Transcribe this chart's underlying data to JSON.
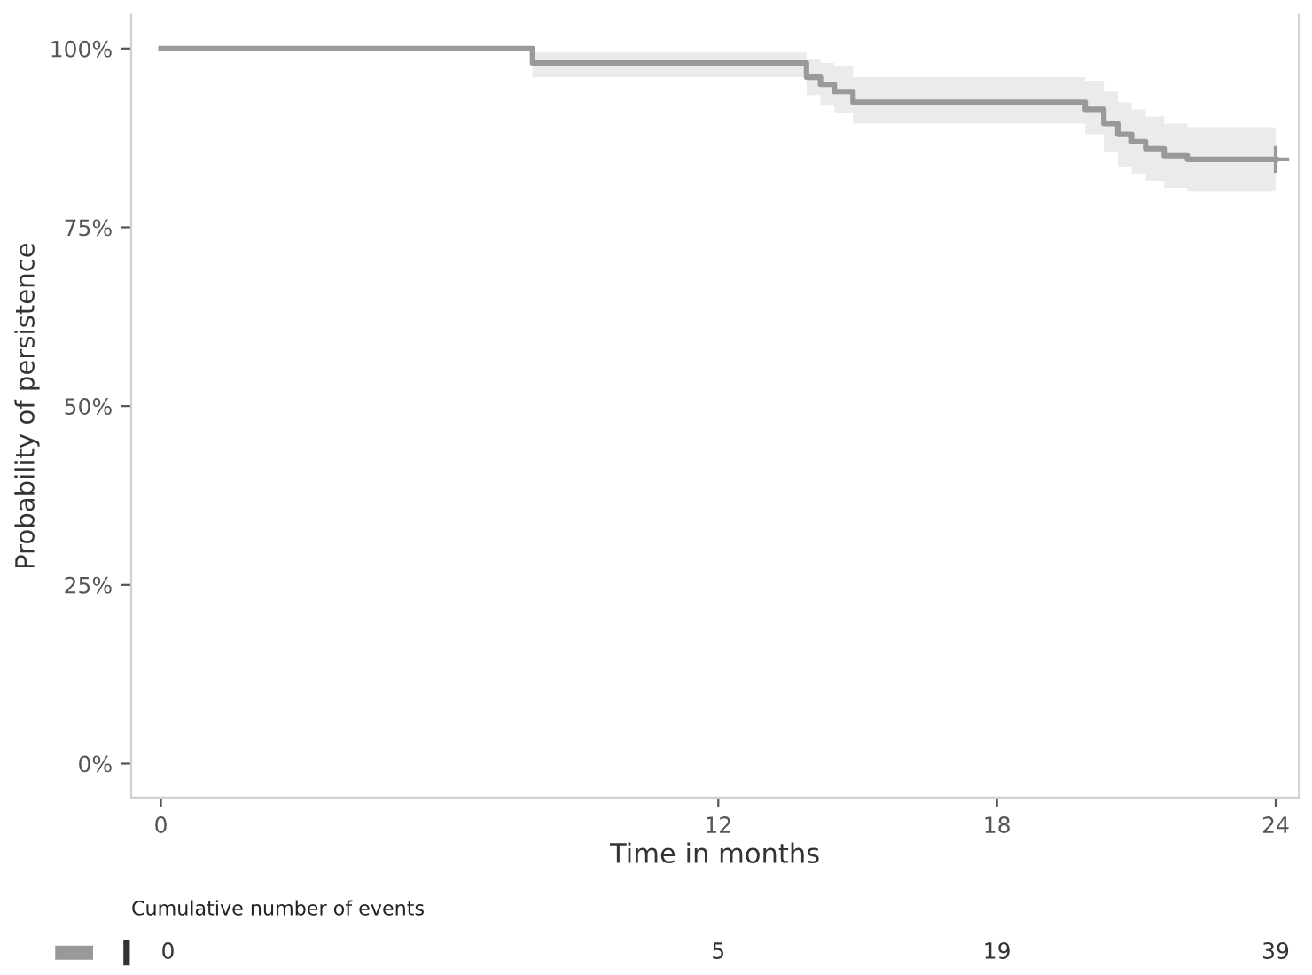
{
  "chart_data": {
    "type": "step",
    "xlabel": "Time in months",
    "ylabel": "Probability of persistence",
    "xlim": [
      -0.64,
      24.5
    ],
    "ylim": [
      -4.75,
      104.75
    ],
    "xticks": [
      0,
      12,
      18,
      24
    ],
    "yticks": [
      {
        "value": 0,
        "label": "0%"
      },
      {
        "value": 25,
        "label": "25%"
      },
      {
        "value": 50,
        "label": "50%"
      },
      {
        "value": 75,
        "label": "75%"
      },
      {
        "value": 100,
        "label": "100%"
      }
    ],
    "grid": false,
    "line_style": "solid",
    "series": [
      {
        "color": "#999999",
        "x": [
          0,
          8,
          13.9,
          14.2,
          14.5,
          14.9,
          19.9,
          20.3,
          20.6,
          20.9,
          21.2,
          21.6,
          22.1,
          24
        ],
        "values": [
          100,
          98,
          96,
          95,
          94,
          92.5,
          91.5,
          89.5,
          88,
          87,
          86,
          85,
          84.5,
          84.5
        ],
        "upper": [
          100,
          99.5,
          98.5,
          98,
          97.5,
          96,
          95.5,
          94,
          92.5,
          91.5,
          90.5,
          89.5,
          89,
          89
        ],
        "lower": [
          100,
          96,
          93.5,
          92,
          91,
          89.5,
          88,
          85.5,
          83.5,
          82.5,
          81.5,
          80.5,
          80,
          80
        ]
      },
      {
        "type": "scatter",
        "marker": "cross",
        "color": "#999999",
        "x": [
          24
        ],
        "values": [
          84.5
        ]
      }
    ],
    "annotations": [
      "Cumulative number of events",
      "0",
      "5",
      "19",
      "39"
    ]
  }
}
